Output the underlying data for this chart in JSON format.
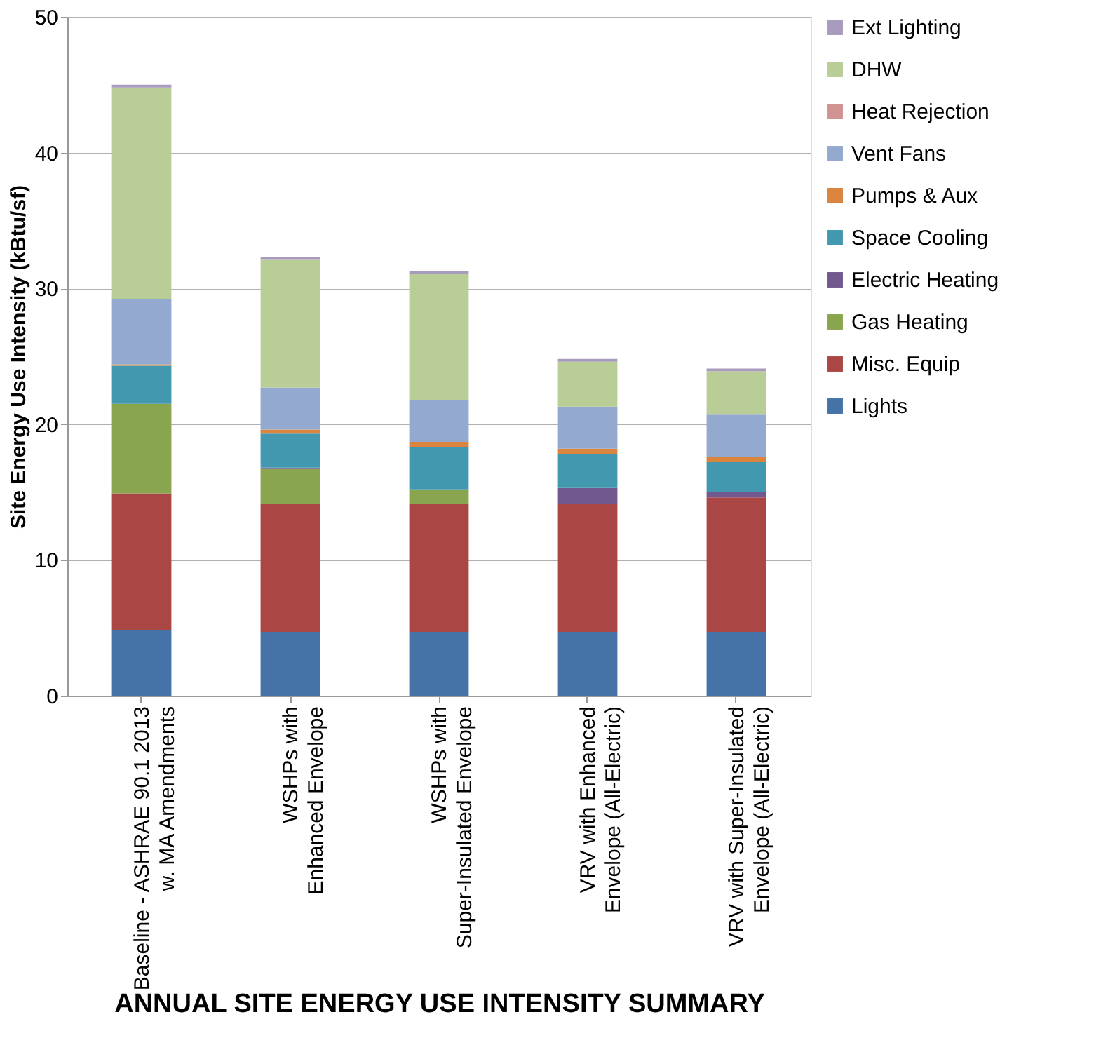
{
  "chart_data": {
    "type": "bar",
    "stacked": true,
    "xlabel": "ANNUAL SITE ENERGY USE INTENSITY SUMMARY",
    "ylabel": "Site Energy Use Intensity  (kBtu/sf)",
    "categories": [
      "Baseline - ASHRAE 90.1 2013\nw. MA Amendments",
      "WSHPs with\nEnhanced Envelope",
      "WSHPs with\nSuper-Insulated Envelope",
      "VRV with Enhanced\nEnvelope (All-Electric)",
      "VRV with Super-Insulated\nEnvelope (All-Electric)"
    ],
    "series": [
      {
        "name": "Lights",
        "color": "#4572a7",
        "values": [
          4.8,
          4.7,
          4.7,
          4.7,
          4.7
        ]
      },
      {
        "name": "Misc. Equip",
        "color": "#aa4643",
        "values": [
          10.1,
          9.4,
          9.4,
          9.4,
          9.9
        ]
      },
      {
        "name": "Gas Heating",
        "color": "#89a54e",
        "values": [
          6.6,
          2.6,
          1.1,
          0,
          0
        ]
      },
      {
        "name": "Electric Heating",
        "color": "#71588f",
        "values": [
          0,
          0.1,
          0,
          1.2,
          0.4
        ]
      },
      {
        "name": "Space Cooling",
        "color": "#4198af",
        "values": [
          2.8,
          2.5,
          3.1,
          2.5,
          2.2
        ]
      },
      {
        "name": "Pumps & Aux",
        "color": "#db843d",
        "values": [
          0.1,
          0.3,
          0.4,
          0.4,
          0.4
        ]
      },
      {
        "name": "Vent Fans",
        "color": "#93a9cf",
        "values": [
          4.8,
          3.1,
          3.1,
          3.1,
          3.1
        ]
      },
      {
        "name": "Heat Rejection",
        "color": "#d19392",
        "values": [
          0,
          0,
          0,
          0,
          0
        ]
      },
      {
        "name": "DHW",
        "color": "#b9cd96",
        "values": [
          15.6,
          9.4,
          9.3,
          3.3,
          3.2
        ]
      },
      {
        "name": "Ext Lighting",
        "color": "#a99bbd",
        "values": [
          0.2,
          0.2,
          0.2,
          0.2,
          0.2
        ]
      }
    ],
    "ylim": [
      0,
      50
    ],
    "yticks": [
      0,
      10,
      20,
      30,
      40,
      50
    ],
    "grid": "y",
    "legend": "right"
  }
}
